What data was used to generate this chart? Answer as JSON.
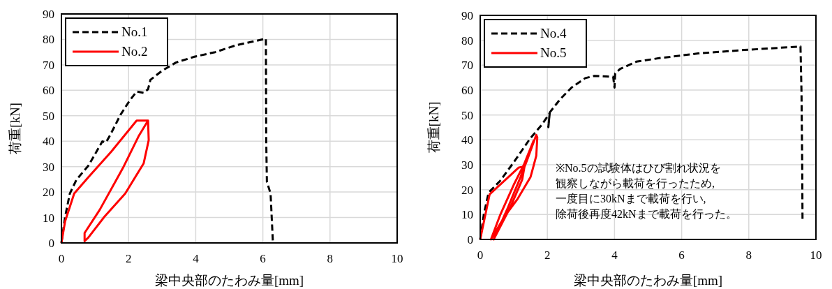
{
  "chart_data": [
    {
      "type": "line",
      "xlabel": "梁中央部のたわみ量[mm]",
      "ylabel": "荷重[kN]",
      "xlim": [
        0,
        10
      ],
      "ylim": [
        0,
        90
      ],
      "xticks": [
        0,
        2,
        4,
        6,
        8,
        10
      ],
      "yticks": [
        0,
        10,
        20,
        30,
        40,
        50,
        60,
        70,
        80,
        90
      ],
      "grid": true,
      "legend": "top left",
      "series": [
        {
          "name": "No.1",
          "color": "#000000",
          "line_style": "dashed",
          "x": [
            0,
            0.11,
            0.25,
            0.45,
            0.8,
            1.22,
            1.33,
            1.48,
            1.76,
            2.03,
            2.24,
            2.45,
            2.58,
            2.65,
            3.0,
            3.41,
            3.96,
            4.58,
            5.2,
            6.09,
            6.1,
            6.12,
            6.23,
            6.3
          ],
          "values": [
            0,
            10.3,
            19.4,
            24.9,
            30.3,
            39.9,
            39.5,
            43.1,
            50.4,
            55.9,
            59.5,
            59.0,
            60.4,
            64.1,
            67.7,
            70.9,
            73.2,
            75.0,
            77.7,
            80.3,
            40.4,
            24.0,
            19.4,
            0
          ]
        },
        {
          "name": "No.2",
          "color": "#ff0000",
          "line_style": "solid",
          "x": [
            0,
            0.11,
            0.38,
            0.8,
            1.48,
            2.24,
            2.58,
            2.6,
            2.45,
            1.9,
            1.28,
            0.8,
            0.69,
            0.69,
            1.14,
            1.83,
            2.31,
            2.58
          ],
          "values": [
            0,
            8.5,
            19.4,
            25.8,
            35.8,
            48.1,
            48.1,
            40.4,
            31.3,
            19.4,
            10.3,
            2.1,
            0.7,
            3.9,
            13.0,
            29.4,
            42.2,
            48.1
          ]
        }
      ]
    },
    {
      "type": "line",
      "xlabel": "梁中央部のたわみ量[mm]",
      "ylabel": "荷重[kN]",
      "xlim": [
        0,
        10
      ],
      "ylim": [
        0,
        90
      ],
      "xticks": [
        0,
        2,
        4,
        6,
        8,
        10
      ],
      "yticks": [
        0,
        10,
        20,
        30,
        40,
        50,
        60,
        70,
        80,
        90
      ],
      "grid": true,
      "legend": "top left",
      "annotations": [
        "※No.5の試験体はひび割れ状況を",
        "観察しながら載荷を行ったため,",
        "一度目に30kNまで載荷を行い,",
        "除荷後再度42kNまで載荷を行った。"
      ],
      "series": [
        {
          "name": "No.4",
          "color": "#000000",
          "line_style": "dashed",
          "x": [
            0,
            0.11,
            0.25,
            0.59,
            1.0,
            1.48,
            1.83,
            2.0,
            2.07,
            2.03,
            2.07,
            2.38,
            2.72,
            3.13,
            3.4,
            3.96,
            4.0,
            4.02,
            4.17,
            4.65,
            5.33,
            6.49,
            7.87,
            9.54,
            9.57,
            9.59,
            9.6
          ],
          "values": [
            0,
            10.3,
            18.8,
            23.5,
            31.0,
            40.4,
            46.0,
            49.3,
            50.7,
            45.1,
            51.0,
            56.3,
            61.0,
            64.8,
            65.7,
            65.3,
            61.0,
            66.7,
            68.5,
            71.4,
            72.8,
            74.7,
            76.1,
            77.5,
            58.9,
            30.8,
            7.4
          ]
        },
        {
          "name": "No.5",
          "color": "#ff0000",
          "line_style": "solid",
          "x": [
            0,
            0.28,
            1.15,
            1.32,
            1.25,
            0.9,
            0.4,
            0.8,
            1.2,
            1.4,
            1.67,
            1.7,
            1.67,
            1.5,
            1.1,
            0.73,
            0.32,
            0.6,
            1.0,
            1.3,
            1.6
          ],
          "values": [
            0,
            18.1,
            28.9,
            29.3,
            24.0,
            13.0,
            0,
            12.0,
            25.0,
            32.0,
            42.0,
            41.0,
            33.6,
            25.1,
            16.0,
            9.3,
            0,
            10.0,
            22.0,
            30.0,
            40.0
          ]
        }
      ]
    }
  ]
}
